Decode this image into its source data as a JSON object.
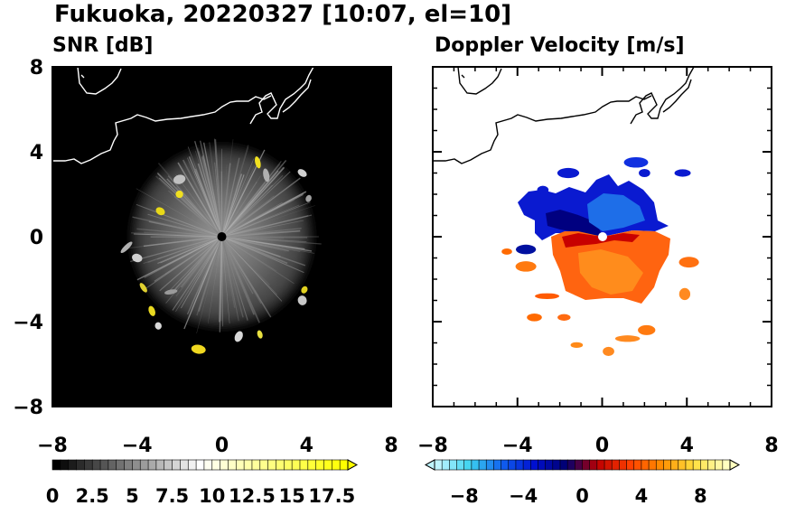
{
  "title": "Fukuoka, 20220327 [10:07, el=10]",
  "chart_data": [
    {
      "type": "heatmap",
      "title": "SNR [dB]",
      "xlim": [
        -8,
        8
      ],
      "ylim": [
        -8,
        8
      ],
      "x_ticks": [
        -8,
        -4,
        0,
        4,
        8
      ],
      "y_ticks": [
        -8,
        -4,
        0,
        4,
        8
      ],
      "x_tick_labels": [
        "−8",
        "−4",
        "0",
        "4",
        "8"
      ],
      "y_tick_labels": [
        "8",
        "4",
        "0",
        "−4",
        "−8"
      ],
      "background_color": "#000000",
      "coastline_color": "#ffffff",
      "radar_location": [
        0,
        0
      ],
      "echo_range_km": 4.5,
      "colorbar": {
        "range": [
          0,
          18.5
        ],
        "labels": [
          "0",
          "2.5",
          "5",
          "7.5",
          "10",
          "12.5",
          "15",
          "17.5"
        ],
        "extend": "max",
        "colors": [
          "#000000",
          "#ffffff",
          "#ffff00"
        ]
      }
    },
    {
      "type": "heatmap",
      "title": "Doppler Velocity [m/s]",
      "xlim": [
        -8,
        8
      ],
      "ylim": [
        -8,
        8
      ],
      "x_ticks": [
        -8,
        -4,
        0,
        4,
        8
      ],
      "y_ticks": [
        -8,
        -4,
        0,
        4,
        8
      ],
      "x_tick_labels": [
        "−8",
        "−4",
        "0",
        "4",
        "8"
      ],
      "background_color": "#ffffff",
      "coastline_color": "#000000",
      "radar_location": [
        0,
        0
      ],
      "echo_range_km": 4.5,
      "colorbar": {
        "range": [
          -10,
          10
        ],
        "labels": [
          "−8",
          "−4",
          "0",
          "4",
          "8"
        ],
        "extend": "both",
        "colors": [
          "#bff5ff",
          "#3cd2f0",
          "#1060f0",
          "#0010d0",
          "#000070",
          "#c00000",
          "#ff4000",
          "#ff9000",
          "#ffe040",
          "#ffffc0"
        ]
      }
    }
  ]
}
